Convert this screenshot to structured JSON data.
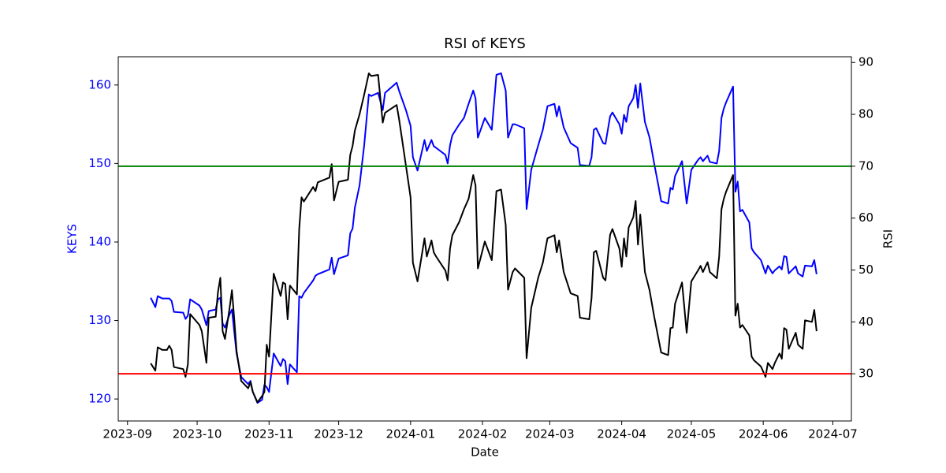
{
  "chart_data": {
    "type": "line",
    "title": "RSI of KEYS",
    "x_label": "Date",
    "y_label": "KEYS",
    "y2_label": "RSI",
    "x": [
      "2023-09-11",
      "2023-09-13",
      "2023-09-14",
      "2023-09-16",
      "2023-09-18",
      "2023-09-19",
      "2023-09-20",
      "2023-09-21",
      "2023-09-25",
      "2023-09-26",
      "2023-09-27",
      "2023-09-28",
      "2023-10-02",
      "2023-10-03",
      "2023-10-05",
      "2023-10-06",
      "2023-10-09",
      "2023-10-10",
      "2023-10-11",
      "2023-10-12",
      "2023-10-13",
      "2023-10-15",
      "2023-10-16",
      "2023-10-17",
      "2023-10-18",
      "2023-10-20",
      "2023-10-23",
      "2023-10-24",
      "2023-10-25",
      "2023-10-27",
      "2023-10-29",
      "2023-10-30",
      "2023-10-31",
      "2023-11-01",
      "2023-11-03",
      "2023-11-06",
      "2023-11-07",
      "2023-11-08",
      "2023-11-09",
      "2023-11-10",
      "2023-11-13",
      "2023-11-14",
      "2023-11-15",
      "2023-11-16",
      "2023-11-20",
      "2023-11-21",
      "2023-11-22",
      "2023-11-27",
      "2023-11-28",
      "2023-11-29",
      "2023-12-01",
      "2023-12-05",
      "2023-12-06",
      "2023-12-07",
      "2023-12-08",
      "2023-12-10",
      "2023-12-12",
      "2023-12-14",
      "2023-12-15",
      "2023-12-18",
      "2023-12-20",
      "2023-12-21",
      "2023-12-26",
      "2023-12-27",
      "2023-12-30",
      "2024-01-01",
      "2024-01-02",
      "2024-01-04",
      "2024-01-07",
      "2024-01-08",
      "2024-01-10",
      "2024-01-11",
      "2024-01-12",
      "2024-01-16",
      "2024-01-17",
      "2024-01-18",
      "2024-01-19",
      "2024-01-22",
      "2024-01-24",
      "2024-01-26",
      "2024-01-28",
      "2024-01-29",
      "2024-01-30",
      "2024-02-02",
      "2024-02-05",
      "2024-02-07",
      "2024-02-09",
      "2024-02-11",
      "2024-02-12",
      "2024-02-14",
      "2024-02-15",
      "2024-02-19",
      "2024-02-20",
      "2024-02-22",
      "2024-02-25",
      "2024-02-27",
      "2024-02-29",
      "2024-03-03",
      "2024-03-04",
      "2024-03-05",
      "2024-03-07",
      "2024-03-10",
      "2024-03-13",
      "2024-03-14",
      "2024-03-18",
      "2024-03-19",
      "2024-03-20",
      "2024-03-21",
      "2024-03-24",
      "2024-03-25",
      "2024-03-27",
      "2024-03-28",
      "2024-03-31",
      "2024-04-01",
      "2024-04-02",
      "2024-04-03",
      "2024-04-04",
      "2024-04-06",
      "2024-04-07",
      "2024-04-08",
      "2024-04-09",
      "2024-04-11",
      "2024-04-13",
      "2024-04-15",
      "2024-04-17",
      "2024-04-18",
      "2024-04-21",
      "2024-04-22",
      "2024-04-23",
      "2024-04-24",
      "2024-04-27",
      "2024-04-29",
      "2024-05-01",
      "2024-05-04",
      "2024-05-05",
      "2024-05-06",
      "2024-05-08",
      "2024-05-09",
      "2024-05-12",
      "2024-05-13",
      "2024-05-14",
      "2024-05-15",
      "2024-05-16",
      "2024-05-19",
      "2024-05-20",
      "2024-05-21",
      "2024-05-22",
      "2024-05-23",
      "2024-05-26",
      "2024-05-27",
      "2024-05-28",
      "2024-05-31",
      "2024-06-02",
      "2024-06-03",
      "2024-06-05",
      "2024-06-06",
      "2024-06-08",
      "2024-06-09",
      "2024-06-10",
      "2024-06-11",
      "2024-06-12",
      "2024-06-15",
      "2024-06-16",
      "2024-06-18",
      "2024-06-19",
      "2024-06-22",
      "2024-06-23",
      "2024-06-24"
    ],
    "series": [
      {
        "color": "#0000ff",
        "axis": "y",
        "values": [
          132.9,
          131.7,
          133.1,
          132.8,
          132.8,
          132.8,
          132.5,
          131.1,
          131.0,
          130.2,
          130.6,
          132.7,
          131.9,
          131.4,
          129.4,
          131.2,
          131.4,
          132.7,
          132.9,
          129.6,
          129.1,
          130.8,
          131.4,
          128.6,
          125.8,
          122.8,
          121.9,
          122.3,
          120.9,
          119.5,
          119.9,
          121.8,
          121.5,
          120.9,
          125.8,
          124.2,
          125.1,
          124.8,
          121.9,
          124.4,
          123.4,
          133.1,
          132.9,
          133.5,
          135.1,
          135.7,
          135.9,
          136.5,
          138.0,
          135.9,
          137.9,
          138.3,
          141.1,
          141.7,
          144.4,
          147.2,
          152.3,
          158.8,
          158.6,
          159.0,
          156.8,
          159.0,
          160.3,
          159.3,
          156.8,
          154.8,
          150.8,
          149.1,
          153.0,
          151.6,
          153.0,
          152.2,
          152.0,
          151.1,
          150.0,
          152.3,
          153.6,
          155.0,
          155.8,
          157.6,
          159.3,
          158.3,
          153.3,
          155.8,
          154.3,
          161.3,
          161.5,
          159.3,
          153.3,
          155.0,
          155.0,
          154.5,
          144.2,
          149.2,
          152.3,
          154.3,
          157.3,
          157.6,
          156.0,
          157.3,
          154.6,
          152.6,
          152.0,
          149.8,
          149.7,
          150.8,
          154.3,
          154.5,
          152.6,
          152.5,
          156.0,
          156.5,
          155.0,
          153.8,
          156.2,
          155.3,
          157.3,
          158.3,
          160.0,
          157.1,
          160.2,
          155.3,
          153.3,
          150.0,
          146.9,
          145.2,
          144.9,
          146.9,
          146.7,
          148.4,
          150.3,
          144.9,
          149.2,
          150.5,
          150.8,
          150.3,
          151.0,
          150.2,
          150.0,
          151.6,
          155.8,
          157.0,
          157.8,
          159.8,
          146.4,
          147.7,
          143.9,
          144.1,
          142.5,
          139.2,
          138.7,
          137.7,
          136.0,
          137.0,
          136.0,
          136.4,
          136.9,
          136.5,
          138.2,
          138.1,
          136.0,
          136.9,
          136.0,
          135.6,
          137.0,
          136.9,
          137.7,
          135.9
        ]
      },
      {
        "color": "#000000",
        "axis": "y2",
        "values": [
          32.0,
          30.6,
          35.1,
          34.6,
          34.6,
          35.4,
          34.6,
          31.3,
          30.9,
          29.4,
          31.8,
          41.5,
          39.4,
          38.2,
          32.1,
          40.8,
          41.0,
          45.8,
          48.5,
          38.2,
          36.7,
          42.7,
          46.1,
          40.5,
          34.4,
          28.6,
          27.2,
          28.4,
          26.5,
          24.5,
          25.7,
          26.5,
          35.6,
          33.3,
          49.3,
          45.0,
          47.6,
          47.3,
          40.5,
          47.0,
          45.3,
          57.9,
          64.0,
          63.2,
          66.0,
          65.2,
          66.9,
          67.8,
          70.4,
          63.4,
          67.0,
          67.4,
          72.2,
          73.9,
          76.9,
          80.0,
          83.8,
          87.9,
          87.4,
          87.6,
          78.4,
          80.3,
          81.8,
          79.2,
          70.1,
          64.0,
          51.4,
          47.8,
          56.1,
          52.6,
          55.7,
          53.4,
          52.6,
          49.9,
          48.0,
          54.1,
          56.7,
          59.3,
          61.7,
          63.7,
          68.3,
          66.3,
          50.3,
          55.5,
          51.9,
          65.2,
          65.5,
          58.7,
          46.2,
          49.6,
          50.3,
          48.5,
          33.0,
          42.7,
          48.5,
          51.4,
          56.1,
          56.7,
          53.4,
          55.7,
          49.6,
          45.5,
          45.0,
          40.8,
          40.5,
          44.6,
          53.4,
          53.7,
          48.5,
          48.0,
          56.8,
          57.9,
          54.1,
          50.6,
          56.1,
          52.6,
          58.2,
          60.2,
          63.3,
          54.9,
          60.7,
          49.6,
          46.1,
          41.0,
          36.4,
          34.1,
          33.6,
          38.8,
          38.9,
          43.5,
          47.6,
          37.9,
          47.8,
          50.0,
          50.8,
          49.6,
          51.5,
          49.6,
          48.4,
          52.6,
          61.7,
          63.7,
          65.1,
          68.3,
          41.2,
          43.5,
          38.9,
          39.4,
          37.4,
          33.3,
          32.6,
          31.4,
          29.4,
          32.1,
          30.9,
          32.1,
          33.9,
          32.9,
          38.8,
          38.5,
          34.8,
          37.9,
          35.6,
          34.8,
          40.3,
          40.0,
          42.3,
          38.2
        ]
      }
    ],
    "hlines": [
      {
        "value": 70,
        "color": "#008000",
        "axis": "y2"
      },
      {
        "value": 30,
        "color": "#ff0000",
        "axis": "y2"
      }
    ],
    "xlim": [
      "2023-08-28",
      "2024-07-09"
    ],
    "xticks": [
      "2023-09",
      "2023-10",
      "2023-11",
      "2023-12",
      "2024-01",
      "2024-02",
      "2024-03",
      "2024-04",
      "2024-05",
      "2024-06",
      "2024-07"
    ],
    "ylim": [
      117.2,
      163.6
    ],
    "yticks": [
      120,
      130,
      140,
      150,
      160
    ],
    "y_color": "#0000ff",
    "y2lim": [
      20.9,
      91.1
    ],
    "y2ticks": [
      30,
      40,
      50,
      60,
      70,
      80,
      90
    ]
  }
}
